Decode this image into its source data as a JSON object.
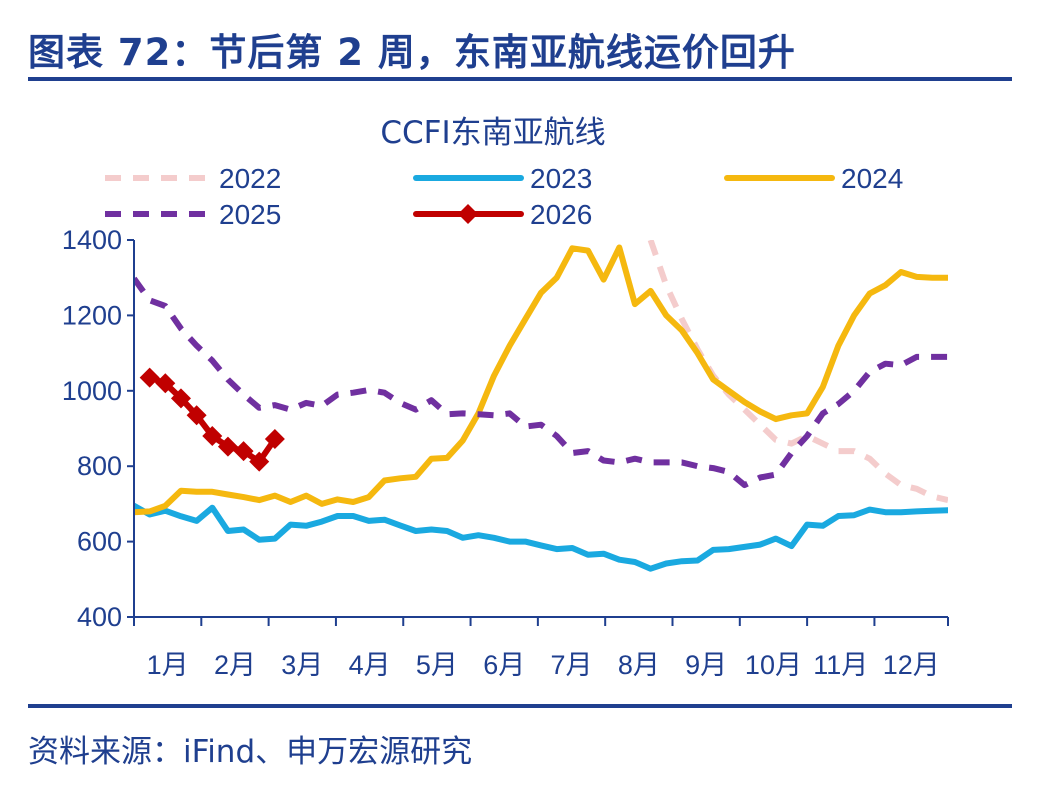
{
  "header": {
    "title": "图表 72：节后第 2 周，东南亚航线运价回升"
  },
  "footer": {
    "source": "资料来源：iFind、申万宏源研究"
  },
  "chart_data": {
    "type": "line",
    "title": "CCFI东南亚航线",
    "xlabel": "",
    "ylabel": "",
    "ylim": [
      400,
      1400
    ],
    "yticks": [
      400,
      600,
      800,
      1000,
      1200,
      1400
    ],
    "xlim": [
      1,
      53
    ],
    "x_tick_labels": [
      "1月",
      "2月",
      "3月",
      "4月",
      "5月",
      "6月",
      "7月",
      "8月",
      "9月",
      "10月",
      "11月",
      "12月"
    ],
    "x_tick_positions": [
      1,
      5.3,
      9.6,
      13.9,
      18.2,
      22.5,
      26.8,
      31.1,
      35.4,
      39.7,
      44,
      48.3
    ],
    "legend_position": "top",
    "series": [
      {
        "name": "2022",
        "color": "#f4cccc",
        "style": "dashed",
        "x": [
          34,
          35,
          36,
          37,
          38,
          39,
          40,
          41,
          42,
          43,
          44,
          45,
          46,
          47,
          48,
          49,
          50,
          51,
          52,
          53
        ],
        "values": [
          1400,
          1280,
          1190,
          1110,
          1040,
          990,
          950,
          910,
          870,
          860,
          880,
          860,
          840,
          840,
          820,
          780,
          750,
          740,
          720,
          710
        ]
      },
      {
        "name": "2023",
        "color": "#1aa9e0",
        "style": "solid",
        "x": [
          1,
          2,
          3,
          4,
          5,
          6,
          7,
          8,
          9,
          10,
          11,
          12,
          13,
          14,
          15,
          16,
          17,
          18,
          19,
          20,
          21,
          22,
          23,
          24,
          25,
          26,
          27,
          28,
          29,
          30,
          31,
          32,
          33,
          34,
          35,
          36,
          37,
          38,
          39,
          40,
          41,
          42,
          43,
          44,
          45,
          46,
          47,
          48,
          49,
          50,
          51,
          52,
          53
        ],
        "values": [
          695,
          672,
          682,
          667,
          655,
          690,
          628,
          632,
          605,
          608,
          645,
          642,
          653,
          668,
          668,
          655,
          658,
          643,
          628,
          632,
          628,
          610,
          617,
          610,
          600,
          600,
          590,
          580,
          583,
          565,
          568,
          552,
          546,
          528,
          542,
          548,
          550,
          578,
          580,
          586,
          592,
          608,
          588,
          645,
          642,
          668,
          670,
          685,
          678,
          678,
          680,
          682,
          683
        ]
      },
      {
        "name": "2024",
        "color": "#f5b80f",
        "style": "solid",
        "x": [
          1,
          2,
          3,
          4,
          5,
          6,
          7,
          8,
          9,
          10,
          11,
          12,
          13,
          14,
          15,
          16,
          17,
          18,
          19,
          20,
          21,
          22,
          23,
          24,
          25,
          26,
          27,
          28,
          29,
          30,
          31,
          32,
          33,
          34,
          35,
          36,
          37,
          38,
          39,
          40,
          41,
          42,
          43,
          44,
          45,
          46,
          47,
          48,
          49,
          50,
          51,
          52,
          53
        ],
        "values": [
          678,
          680,
          695,
          735,
          732,
          732,
          725,
          718,
          710,
          722,
          705,
          722,
          700,
          712,
          705,
          718,
          762,
          768,
          772,
          820,
          822,
          868,
          940,
          1040,
          1120,
          1190,
          1260,
          1300,
          1378,
          1372,
          1295,
          1380,
          1230,
          1265,
          1200,
          1160,
          1100,
          1030,
          1000,
          970,
          945,
          925,
          935,
          940,
          1010,
          1120,
          1200,
          1258,
          1280,
          1315,
          1302,
          1300,
          1300
        ]
      },
      {
        "name": "2025",
        "color": "#7030a0",
        "style": "dashed",
        "x": [
          1,
          2,
          3,
          4,
          5,
          6,
          7,
          8,
          9,
          10,
          11,
          12,
          13,
          14,
          15,
          16,
          17,
          18,
          19,
          20,
          21,
          22,
          23,
          24,
          25,
          26,
          27,
          28,
          29,
          30,
          31,
          32,
          33,
          34,
          35,
          36,
          37,
          38,
          39,
          40,
          41,
          42,
          43,
          44,
          45,
          46,
          47,
          48,
          49,
          50,
          51,
          52,
          53
        ],
        "values": [
          1298,
          1240,
          1225,
          1165,
          1120,
          1080,
          1030,
          990,
          955,
          962,
          950,
          968,
          960,
          990,
          995,
          1002,
          995,
          968,
          950,
          975,
          938,
          940,
          938,
          935,
          940,
          905,
          910,
          880,
          835,
          840,
          815,
          810,
          820,
          810,
          810,
          810,
          800,
          795,
          785,
          750,
          770,
          778,
          835,
          880,
          940,
          965,
          1000,
          1050,
          1072,
          1068,
          1090,
          1090,
          1090
        ]
      },
      {
        "name": "2026",
        "color": "#c00000",
        "style": "solid-diamond",
        "x": [
          2,
          3,
          4,
          5,
          6,
          7,
          8,
          9,
          10
        ],
        "values": [
          1035,
          1020,
          980,
          935,
          880,
          852,
          840,
          812,
          872
        ]
      }
    ]
  }
}
